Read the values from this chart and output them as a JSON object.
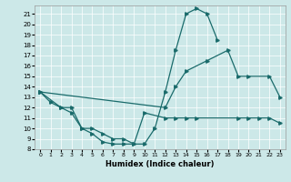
{
  "xlabel": "Humidex (Indice chaleur)",
  "bg_color": "#cce8e8",
  "line_color": "#1a6b6b",
  "grid_color": "#ffffff",
  "xlim": [
    -0.5,
    23.5
  ],
  "ylim": [
    8,
    21.8
  ],
  "yticks": [
    8,
    9,
    10,
    11,
    12,
    13,
    14,
    15,
    16,
    17,
    18,
    19,
    20,
    21
  ],
  "xticks": [
    0,
    1,
    2,
    3,
    4,
    5,
    6,
    7,
    8,
    9,
    10,
    11,
    12,
    13,
    14,
    15,
    16,
    17,
    18,
    19,
    20,
    21,
    22,
    23
  ],
  "line1_x": [
    0,
    1,
    2,
    3,
    4,
    5,
    6,
    7,
    8,
    9,
    10,
    11,
    12,
    13,
    14,
    15,
    16,
    17
  ],
  "line1_y": [
    13.5,
    12.5,
    12.0,
    11.5,
    10.0,
    9.5,
    8.7,
    8.5,
    8.5,
    8.5,
    8.5,
    10.0,
    13.5,
    17.5,
    21.0,
    21.5,
    21.0,
    18.5
  ],
  "line2_x": [
    0,
    2,
    3,
    4,
    5,
    6,
    7,
    8,
    9,
    10,
    12,
    13,
    14,
    15,
    19,
    20,
    21,
    22,
    23
  ],
  "line2_y": [
    13.5,
    12.0,
    12.0,
    10.0,
    10.0,
    9.5,
    9.0,
    9.0,
    8.5,
    11.5,
    11.0,
    11.0,
    11.0,
    11.0,
    11.0,
    11.0,
    11.0,
    11.0,
    10.5
  ],
  "line3_x": [
    0,
    12,
    13,
    14,
    16,
    18,
    19,
    20,
    22,
    23
  ],
  "line3_y": [
    13.5,
    12.0,
    14.0,
    15.5,
    16.5,
    17.5,
    15.0,
    15.0,
    15.0,
    13.0
  ]
}
